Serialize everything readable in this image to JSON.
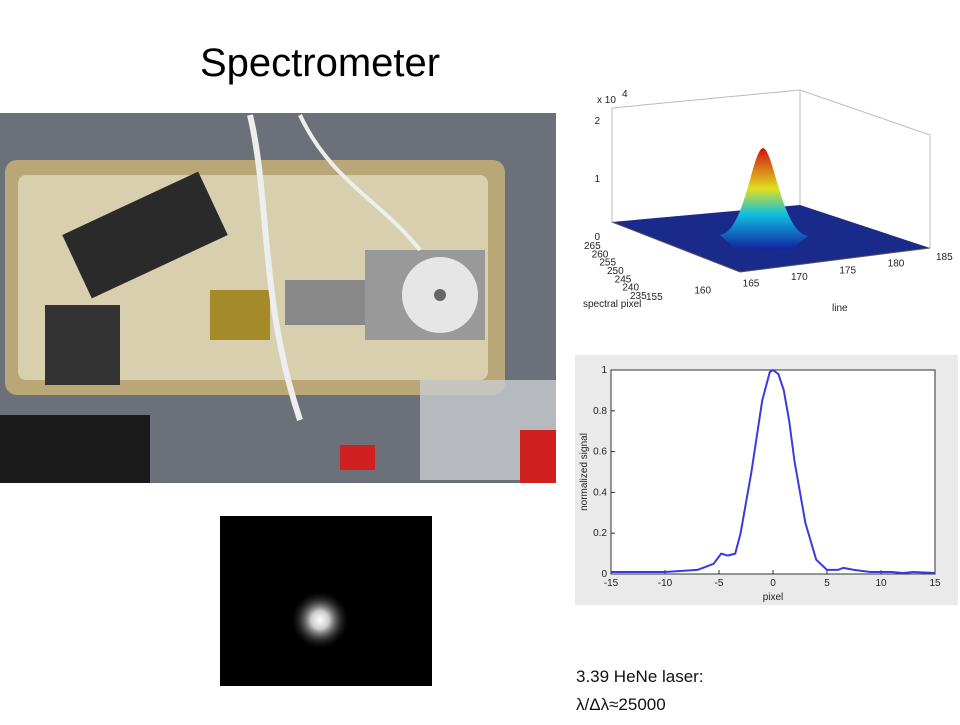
{
  "title": "Spectrometer",
  "caption": [
    "3.39 HeNe laser:",
    "λ/Δλ≈25000"
  ],
  "surface_plot": {
    "exponent": "x 10",
    "exponent_power": "4",
    "z_ticks": [
      0,
      1,
      2
    ],
    "spectral_pixel_ticks": [
      265,
      260,
      255,
      250,
      245,
      240,
      235
    ],
    "line_ticks": [
      155,
      160,
      165,
      170,
      175,
      180,
      185
    ],
    "xlabel": "spectral pixel",
    "ylabel": "line"
  },
  "chart_data": {
    "type": "line",
    "xlabel": "pixel",
    "ylabel": "normalized signal",
    "color": "#3a3ae0",
    "x": [
      -15,
      -10,
      -7,
      -5.5,
      -4.8,
      -4.2,
      -3.5,
      -3,
      -2,
      -1,
      -0.3,
      0,
      0.5,
      1,
      1.5,
      2,
      3,
      4,
      5,
      6,
      6.5,
      7.5,
      9,
      11,
      12,
      13,
      15
    ],
    "values": [
      0.01,
      0.01,
      0.02,
      0.05,
      0.1,
      0.09,
      0.1,
      0.2,
      0.5,
      0.85,
      0.99,
      1.0,
      0.98,
      0.9,
      0.75,
      0.55,
      0.25,
      0.07,
      0.02,
      0.02,
      0.03,
      0.02,
      0.01,
      0.01,
      0.005,
      0.01,
      0.005
    ],
    "xlim": [
      -15,
      15
    ],
    "ylim": [
      0,
      1
    ],
    "xticks": [
      -15,
      -10,
      -5,
      0,
      5,
      10,
      15
    ],
    "yticks": [
      0,
      0.2,
      0.4,
      0.6,
      0.8,
      1
    ]
  }
}
